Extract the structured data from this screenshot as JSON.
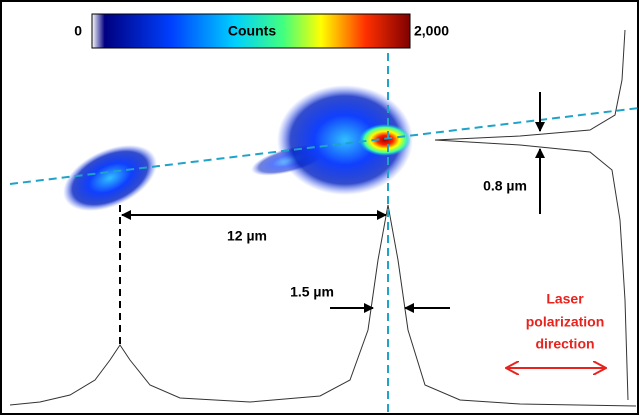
{
  "colorbar": {
    "min": "0",
    "label": "Counts",
    "max": "2,000"
  },
  "annotations": {
    "separation": "12 µm",
    "vertical_width": "0.8 µm",
    "horizontal_width": "1.5 µm",
    "polarization": [
      "Laser",
      "polarization",
      "direction"
    ]
  }
}
